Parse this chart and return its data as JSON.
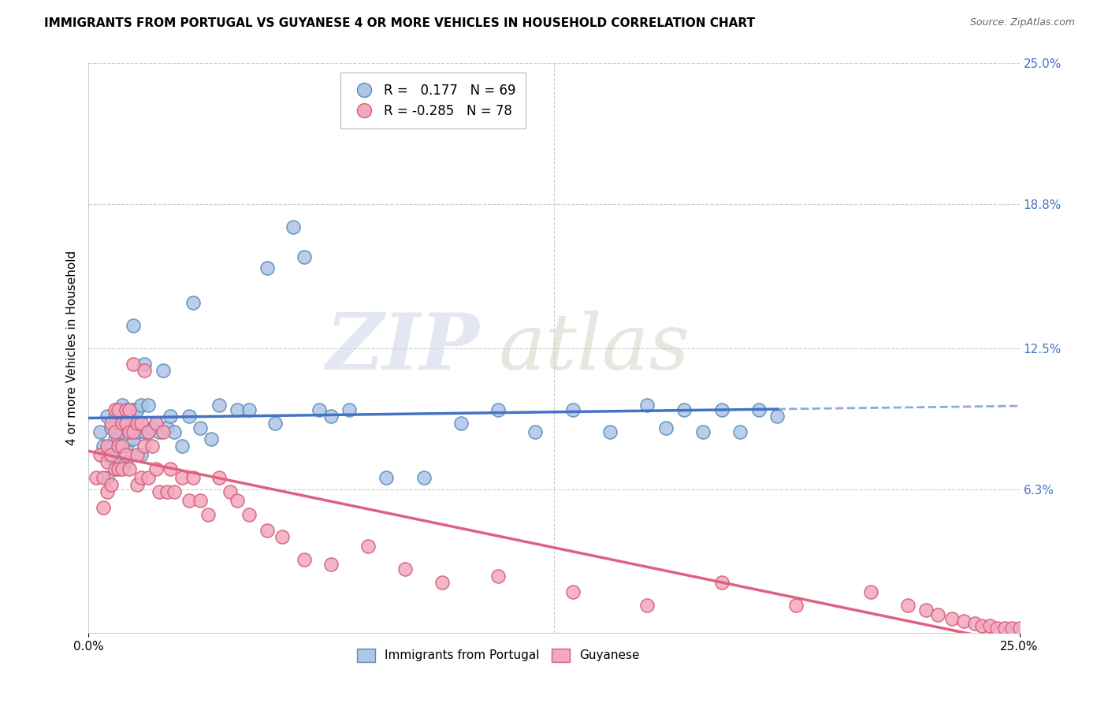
{
  "title": "IMMIGRANTS FROM PORTUGAL VS GUYANESE 4 OR MORE VEHICLES IN HOUSEHOLD CORRELATION CHART",
  "source": "Source: ZipAtlas.com",
  "ylabel": "4 or more Vehicles in Household",
  "xlim": [
    0.0,
    0.25
  ],
  "ylim": [
    0.0,
    0.25
  ],
  "blue_r": "0.177",
  "blue_n": "69",
  "pink_r": "-0.285",
  "pink_n": "78",
  "blue_color": "#AEC6E8",
  "pink_color": "#F4A8C0",
  "blue_edge_color": "#5B8DB8",
  "pink_edge_color": "#D4607A",
  "blue_line_color": "#4472C4",
  "pink_line_color": "#E06080",
  "legend_label_blue": "Immigrants from Portugal",
  "legend_label_pink": "Guyanese",
  "watermark_zip": "ZIP",
  "watermark_atlas": "atlas",
  "right_ytick_labels": [
    "25.0%",
    "18.8%",
    "12.5%",
    "6.3%"
  ],
  "right_ytick_positions": [
    0.25,
    0.188,
    0.125,
    0.063
  ],
  "grid_color": "#CCCCCC",
  "background_color": "#FFFFFF",
  "blue_scatter_x": [
    0.003,
    0.004,
    0.005,
    0.005,
    0.005,
    0.006,
    0.006,
    0.007,
    0.007,
    0.007,
    0.008,
    0.008,
    0.008,
    0.009,
    0.009,
    0.01,
    0.01,
    0.01,
    0.01,
    0.011,
    0.011,
    0.012,
    0.012,
    0.012,
    0.013,
    0.013,
    0.014,
    0.014,
    0.015,
    0.015,
    0.016,
    0.016,
    0.017,
    0.018,
    0.019,
    0.02,
    0.021,
    0.022,
    0.023,
    0.025,
    0.027,
    0.028,
    0.03,
    0.033,
    0.035,
    0.04,
    0.043,
    0.048,
    0.05,
    0.055,
    0.058,
    0.062,
    0.065,
    0.07,
    0.08,
    0.09,
    0.1,
    0.11,
    0.12,
    0.13,
    0.14,
    0.15,
    0.155,
    0.16,
    0.165,
    0.17,
    0.175,
    0.18,
    0.185
  ],
  "blue_scatter_y": [
    0.088,
    0.082,
    0.095,
    0.078,
    0.068,
    0.09,
    0.082,
    0.095,
    0.085,
    0.075,
    0.095,
    0.085,
    0.075,
    0.1,
    0.088,
    0.095,
    0.09,
    0.082,
    0.075,
    0.095,
    0.085,
    0.135,
    0.098,
    0.085,
    0.098,
    0.088,
    0.1,
    0.078,
    0.118,
    0.088,
    0.1,
    0.088,
    0.09,
    0.092,
    0.088,
    0.115,
    0.09,
    0.095,
    0.088,
    0.082,
    0.095,
    0.145,
    0.09,
    0.085,
    0.1,
    0.098,
    0.098,
    0.16,
    0.092,
    0.178,
    0.165,
    0.098,
    0.095,
    0.098,
    0.068,
    0.068,
    0.092,
    0.098,
    0.088,
    0.098,
    0.088,
    0.1,
    0.09,
    0.098,
    0.088,
    0.098,
    0.088,
    0.098,
    0.095
  ],
  "pink_scatter_x": [
    0.002,
    0.003,
    0.004,
    0.004,
    0.005,
    0.005,
    0.005,
    0.006,
    0.006,
    0.006,
    0.007,
    0.007,
    0.007,
    0.008,
    0.008,
    0.008,
    0.009,
    0.009,
    0.009,
    0.01,
    0.01,
    0.01,
    0.011,
    0.011,
    0.011,
    0.012,
    0.012,
    0.013,
    0.013,
    0.013,
    0.014,
    0.014,
    0.015,
    0.015,
    0.016,
    0.016,
    0.017,
    0.018,
    0.018,
    0.019,
    0.02,
    0.021,
    0.022,
    0.023,
    0.025,
    0.027,
    0.028,
    0.03,
    0.032,
    0.035,
    0.038,
    0.04,
    0.043,
    0.048,
    0.052,
    0.058,
    0.065,
    0.075,
    0.085,
    0.095,
    0.11,
    0.13,
    0.15,
    0.17,
    0.19,
    0.21,
    0.22,
    0.225,
    0.228,
    0.232,
    0.235,
    0.238,
    0.24,
    0.242,
    0.244,
    0.246,
    0.248,
    0.25
  ],
  "pink_scatter_y": [
    0.068,
    0.078,
    0.068,
    0.055,
    0.082,
    0.075,
    0.062,
    0.092,
    0.078,
    0.065,
    0.098,
    0.088,
    0.072,
    0.098,
    0.082,
    0.072,
    0.092,
    0.082,
    0.072,
    0.098,
    0.092,
    0.078,
    0.098,
    0.088,
    0.072,
    0.118,
    0.088,
    0.092,
    0.078,
    0.065,
    0.092,
    0.068,
    0.115,
    0.082,
    0.088,
    0.068,
    0.082,
    0.092,
    0.072,
    0.062,
    0.088,
    0.062,
    0.072,
    0.062,
    0.068,
    0.058,
    0.068,
    0.058,
    0.052,
    0.068,
    0.062,
    0.058,
    0.052,
    0.045,
    0.042,
    0.032,
    0.03,
    0.038,
    0.028,
    0.022,
    0.025,
    0.018,
    0.012,
    0.022,
    0.012,
    0.018,
    0.012,
    0.01,
    0.008,
    0.006,
    0.005,
    0.004,
    0.003,
    0.003,
    0.002,
    0.002,
    0.002,
    0.002
  ]
}
